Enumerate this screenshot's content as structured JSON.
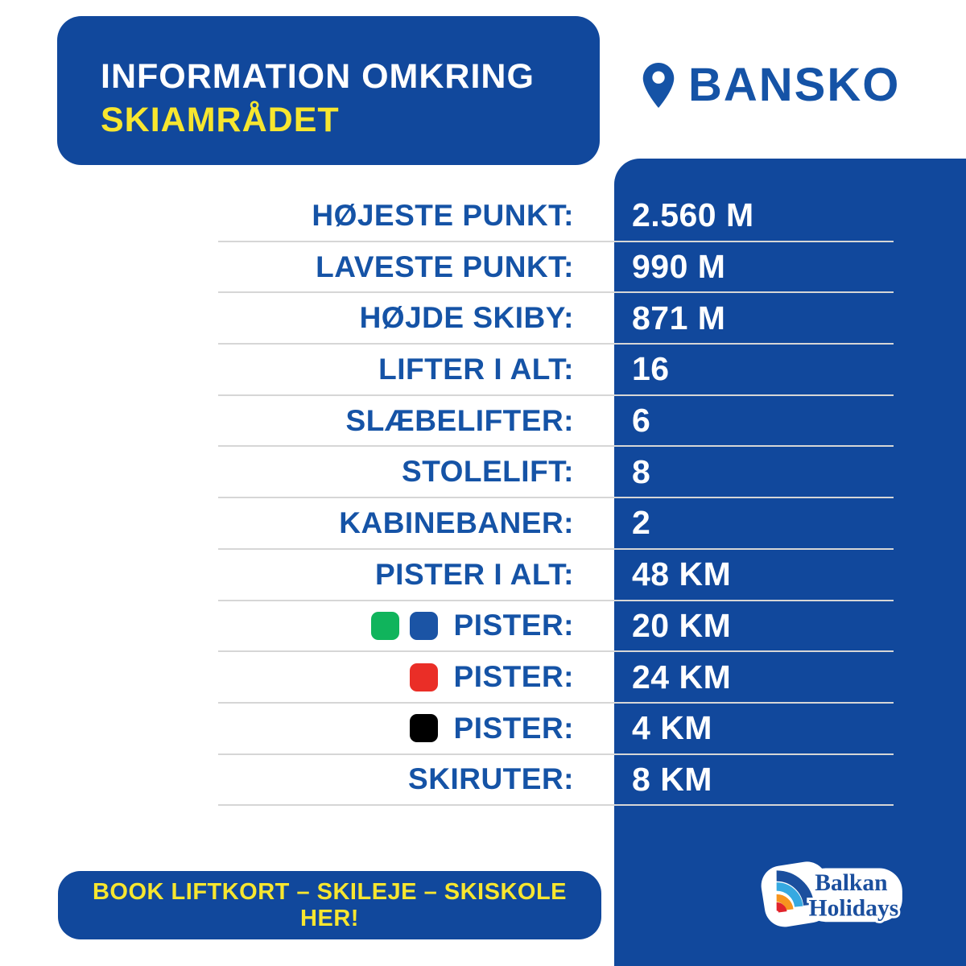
{
  "colors": {
    "brand": "#11489C",
    "label_blue": "#1553A6",
    "yellow": "#F7E62F",
    "divider": "#D6D6D6",
    "green_square": "#10B45C",
    "blue_square": "#1B54A5",
    "red_square": "#EA2E27",
    "black_square": "#000000",
    "logo_dark_blue": "#1B4F9E",
    "logo_light_blue": "#36A9E1",
    "logo_orange": "#F7941E",
    "logo_red": "#E1232B"
  },
  "header": {
    "title_line1": "INFORMATION OMKRING",
    "title_line2": "SKIAMRÅDET"
  },
  "location": {
    "icon": "location-pin-icon",
    "name": "BANSKO"
  },
  "table": {
    "rows": [
      {
        "label": "HØJESTE PUNKT:",
        "value": "2.560 M",
        "markers": []
      },
      {
        "label": "LAVESTE PUNKT:",
        "value": "990 M",
        "markers": []
      },
      {
        "label": "HØJDE SKIBY:",
        "value": "871 M",
        "markers": []
      },
      {
        "label": "LIFTER I ALT:",
        "value": "16",
        "markers": []
      },
      {
        "label": "SLÆBELIFTER:",
        "value": "6",
        "markers": []
      },
      {
        "label": "STOLELIFT:",
        "value": "8",
        "markers": []
      },
      {
        "label": "KABINEBANER:",
        "value": "2",
        "markers": []
      },
      {
        "label": "PISTER I ALT:",
        "value": "48 KM",
        "markers": []
      },
      {
        "label": "PISTER:",
        "value": "20 KM",
        "markers": [
          "green",
          "blue"
        ]
      },
      {
        "label": "PISTER:",
        "value": "24 KM",
        "markers": [
          "red"
        ]
      },
      {
        "label": "PISTER:",
        "value": "4 KM",
        "markers": [
          "black"
        ]
      },
      {
        "label": "SKIRUTER:",
        "value": "8 KM",
        "markers": []
      }
    ]
  },
  "footer": {
    "cta": "BOOK LIFTKORT – SKILEJE – SKISKOLE HER!",
    "logo_line1": "Balkan",
    "logo_line2": "Holidays"
  }
}
